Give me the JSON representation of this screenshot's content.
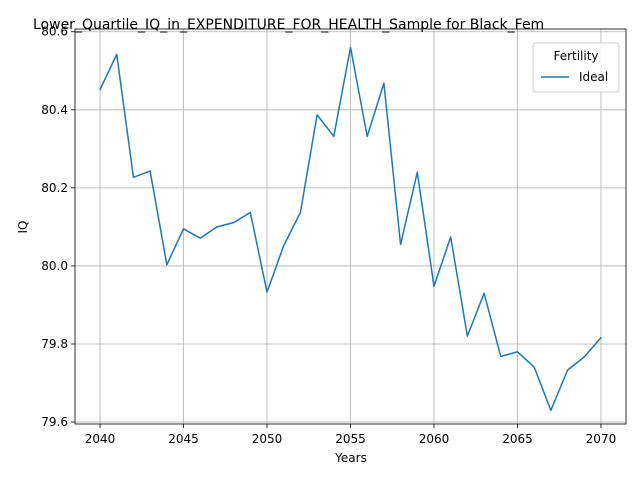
{
  "chart_data": {
    "type": "line",
    "title": "Lower_Quartile_IQ_in_EXPENDITURE_FOR_HEALTH_Sample for Black_Fem",
    "xlabel": "Years",
    "ylabel": "IQ",
    "xlim": [
      2038.5,
      2071.5
    ],
    "ylim": [
      79.595,
      80.607
    ],
    "xticks": [
      2040,
      2045,
      2050,
      2055,
      2060,
      2065,
      2070
    ],
    "yticks": [
      79.6,
      79.8,
      80.0,
      80.2,
      80.4,
      80.6
    ],
    "ytick_labels": [
      "79.6",
      "79.8",
      "80.0",
      "80.2",
      "80.4",
      "80.6"
    ],
    "grid": true,
    "legend": {
      "title": "Fertility",
      "placement": "top-right"
    },
    "series": [
      {
        "name": "Ideal",
        "color": "#1f77b4",
        "x": [
          2040,
          2041,
          2042,
          2043,
          2044,
          2045,
          2046,
          2047,
          2048,
          2049,
          2050,
          2051,
          2052,
          2053,
          2054,
          2055,
          2056,
          2057,
          2058,
          2059,
          2060,
          2061,
          2062,
          2063,
          2064,
          2065,
          2066,
          2067,
          2068,
          2069,
          2070
        ],
        "y": [
          80.452,
          80.542,
          80.227,
          80.243,
          80.003,
          80.095,
          80.071,
          80.1,
          80.111,
          80.137,
          79.933,
          80.052,
          80.137,
          80.387,
          80.332,
          80.56,
          80.332,
          80.468,
          80.055,
          80.24,
          79.948,
          80.074,
          79.82,
          79.93,
          79.768,
          79.78,
          79.741,
          79.63,
          79.733,
          79.767,
          79.816
        ]
      }
    ]
  }
}
